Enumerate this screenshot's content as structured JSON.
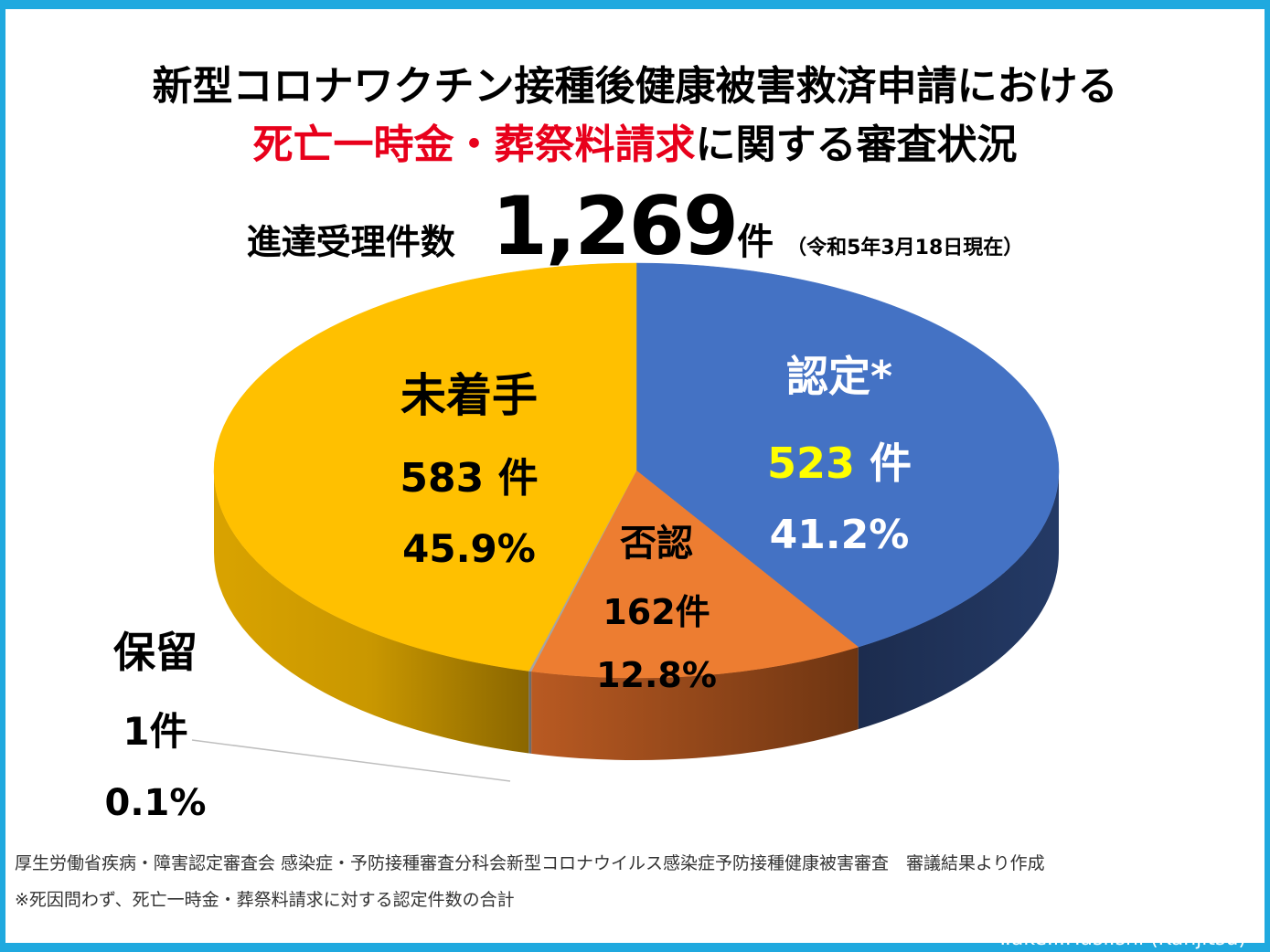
{
  "header": {
    "title_line1": "新型コロナワクチン接種後健康被害救済申請における",
    "title_line2_highlight": "死亡一時金・葬祭料請求",
    "title_line2_rest": "に関する審査状況",
    "count_label": "進達受理件数",
    "count_value": "1,269",
    "count_unit": "件",
    "as_of": "（令和5年3月18日現在）"
  },
  "chart_data": {
    "type": "pie",
    "total": 1269,
    "slices": [
      {
        "label": "認定*",
        "count": 523,
        "count_text": "523",
        "unit": "件",
        "percent": 41.2,
        "percent_text": "41.2%",
        "color": "#4472c4",
        "side_color": "#1f2f52"
      },
      {
        "label": "否認",
        "count": 162,
        "count_text": "162件",
        "unit": "",
        "percent": 12.8,
        "percent_text": "12.8%",
        "color": "#ed7d31",
        "side_color": "#7a3a15"
      },
      {
        "label": "保留",
        "count": 1,
        "count_text": "1件",
        "unit": "",
        "percent": 0.1,
        "percent_text": "0.1%",
        "color": "#a5a5a5",
        "side_color": "#6d6d6d"
      },
      {
        "label": "未着手",
        "count": 583,
        "count_text": "583 件",
        "unit": "",
        "percent": 45.9,
        "percent_text": "45.9%",
        "color": "#ffc000",
        "side_color": "#a67c00"
      }
    ]
  },
  "footer": {
    "source": "厚生労働省疾病・障害認定審査会 感染症・予防接種審査分科会新型コロナウイルス感染症予防接種健康被害審査　審議結果より作成",
    "note": "※死因問わず、死亡一時金・葬祭料請求に対する認定件数の合計",
    "credit": "Y.ake.i.Hasi.shi (Kanjitsu)"
  },
  "colors": {
    "background": "#1fa9df",
    "highlight_red": "#e8001b",
    "yellow_text": "#ffff00"
  }
}
